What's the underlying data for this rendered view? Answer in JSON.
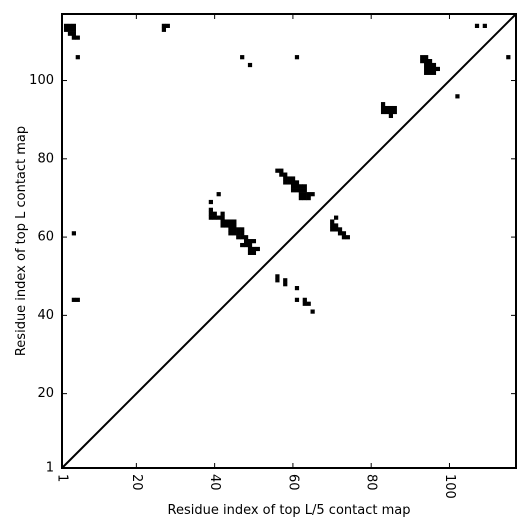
{
  "chart_data": {
    "type": "heatmap",
    "xlabel": "Residue index of top L/5 contact map",
    "ylabel": "Residue index of top L contact map",
    "xlim": [
      1,
      117
    ],
    "ylim": [
      1,
      117
    ],
    "x_ticks": [
      1,
      20,
      40,
      60,
      80,
      100
    ],
    "y_ticks": [
      1,
      20,
      40,
      60,
      80,
      100
    ],
    "x_tick_labels": [
      "1",
      "20",
      "40",
      "60",
      "80",
      "100"
    ],
    "y_tick_labels": [
      "1",
      "20",
      "40",
      "60",
      "80",
      "100"
    ],
    "x_tick_label_rotation": "vertical",
    "diagonal": true,
    "grid": false,
    "cell_color": "#000000",
    "background_color": "#ffffff",
    "contacts_upper_left": [
      [
        2,
        114
      ],
      [
        3,
        114
      ],
      [
        4,
        114
      ],
      [
        2,
        113
      ],
      [
        3,
        113
      ],
      [
        4,
        113
      ],
      [
        3,
        112
      ],
      [
        4,
        112
      ],
      [
        4,
        111
      ],
      [
        5,
        111
      ],
      [
        5,
        106
      ],
      [
        27,
        114
      ],
      [
        28,
        114
      ],
      [
        27,
        113
      ],
      [
        47,
        106
      ],
      [
        49,
        104
      ],
      [
        61,
        106
      ],
      [
        93,
        106
      ],
      [
        94,
        106
      ],
      [
        93,
        105
      ],
      [
        94,
        105
      ],
      [
        95,
        105
      ],
      [
        94,
        104
      ],
      [
        95,
        104
      ],
      [
        96,
        104
      ],
      [
        94,
        103
      ],
      [
        95,
        103
      ],
      [
        96,
        103
      ],
      [
        97,
        103
      ],
      [
        94,
        102
      ],
      [
        95,
        102
      ],
      [
        96,
        102
      ],
      [
        83,
        94
      ],
      [
        83,
        93
      ],
      [
        84,
        93
      ],
      [
        85,
        93
      ],
      [
        86,
        93
      ],
      [
        83,
        92
      ],
      [
        84,
        92
      ],
      [
        85,
        92
      ],
      [
        86,
        92
      ],
      [
        85,
        91
      ],
      [
        102,
        96
      ],
      [
        107,
        114
      ],
      [
        109,
        114
      ],
      [
        115,
        106
      ],
      [
        4,
        61
      ],
      [
        4,
        44
      ],
      [
        5,
        44
      ],
      [
        39,
        69
      ],
      [
        41,
        71
      ],
      [
        39,
        67
      ],
      [
        39,
        66
      ],
      [
        40,
        66
      ],
      [
        42,
        66
      ],
      [
        39,
        65
      ],
      [
        40,
        65
      ],
      [
        41,
        65
      ],
      [
        42,
        65
      ],
      [
        42,
        64
      ],
      [
        43,
        64
      ],
      [
        44,
        64
      ],
      [
        45,
        64
      ],
      [
        42,
        63
      ],
      [
        43,
        63
      ],
      [
        44,
        63
      ],
      [
        45,
        63
      ],
      [
        44,
        62
      ],
      [
        45,
        62
      ],
      [
        46,
        62
      ],
      [
        47,
        62
      ],
      [
        44,
        61
      ],
      [
        45,
        61
      ],
      [
        46,
        61
      ],
      [
        47,
        61
      ],
      [
        46,
        60
      ],
      [
        47,
        60
      ],
      [
        48,
        60
      ],
      [
        48,
        59
      ],
      [
        49,
        59
      ],
      [
        50,
        59
      ],
      [
        47,
        58
      ],
      [
        48,
        58
      ],
      [
        49,
        58
      ],
      [
        49,
        57
      ],
      [
        50,
        57
      ],
      [
        51,
        57
      ],
      [
        49,
        56
      ],
      [
        50,
        56
      ],
      [
        56,
        77
      ],
      [
        57,
        77
      ],
      [
        57,
        76
      ],
      [
        58,
        76
      ],
      [
        58,
        75
      ],
      [
        59,
        75
      ],
      [
        60,
        75
      ],
      [
        58,
        74
      ],
      [
        59,
        74
      ],
      [
        60,
        74
      ],
      [
        61,
        74
      ],
      [
        60,
        73
      ],
      [
        61,
        73
      ],
      [
        62,
        73
      ],
      [
        63,
        73
      ],
      [
        60,
        72
      ],
      [
        61,
        72
      ],
      [
        62,
        72
      ],
      [
        63,
        72
      ],
      [
        62,
        71
      ],
      [
        63,
        71
      ],
      [
        64,
        71
      ],
      [
        65,
        71
      ],
      [
        62,
        70
      ],
      [
        63,
        70
      ],
      [
        64,
        70
      ],
      [
        71,
        65
      ],
      [
        70,
        64
      ],
      [
        70,
        63
      ],
      [
        71,
        63
      ],
      [
        70,
        62
      ],
      [
        71,
        62
      ],
      [
        72,
        62
      ],
      [
        72,
        61
      ],
      [
        73,
        61
      ],
      [
        73,
        60
      ],
      [
        74,
        60
      ],
      [
        56,
        50
      ],
      [
        56,
        49
      ],
      [
        58,
        49
      ],
      [
        58,
        48
      ],
      [
        61,
        47
      ],
      [
        61,
        44
      ],
      [
        63,
        44
      ],
      [
        63,
        43
      ],
      [
        64,
        43
      ],
      [
        65,
        41
      ]
    ]
  }
}
